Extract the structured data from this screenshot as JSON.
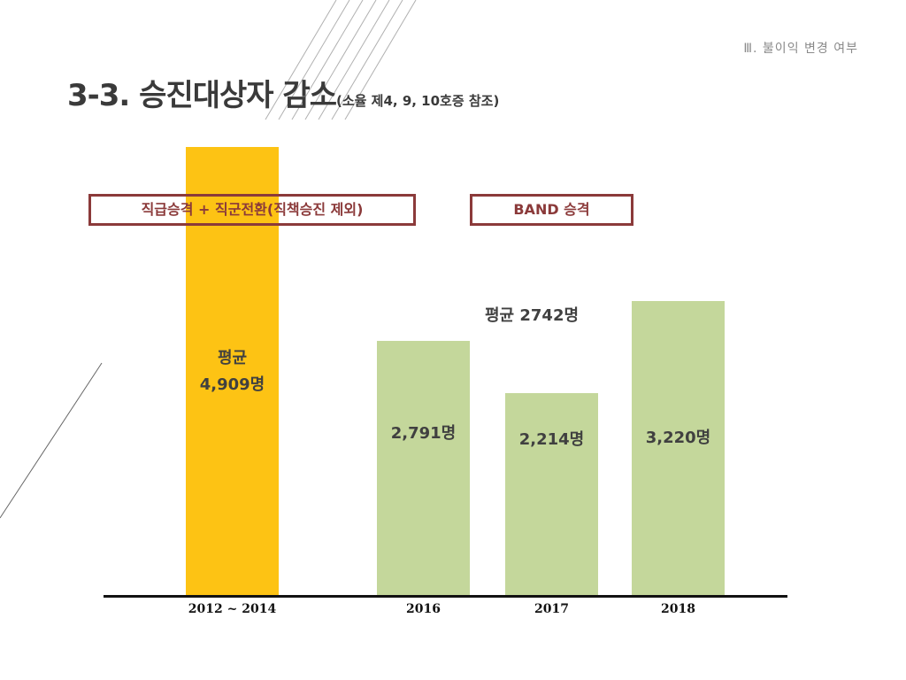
{
  "header": {
    "section": "Ⅲ. 불이익 변경 여부",
    "title": "3-3.  승진대상자 감소",
    "title_sub": "(소율 제4, 9, 10호증 참조)"
  },
  "boxes": {
    "left": "직급승격 + 직군전환(직책승진 제외)",
    "right": "BAND  승격"
  },
  "chart_data": {
    "type": "bar",
    "categories": [
      "2012 ~ 2014",
      "2016",
      "2017",
      "2018"
    ],
    "values": [
      4909,
      2791,
      2214,
      3220
    ],
    "value_labels": [
      "평균\n4,909명",
      "2,791명",
      "2,214명",
      "3,220명"
    ],
    "colors": [
      "#fdc314",
      "#c4d79b",
      "#c4d79b",
      "#c4d79b"
    ],
    "annotation": "평균   2742명",
    "ylim": [
      0,
      5500
    ],
    "title": "",
    "xlabel": "",
    "ylabel": ""
  }
}
